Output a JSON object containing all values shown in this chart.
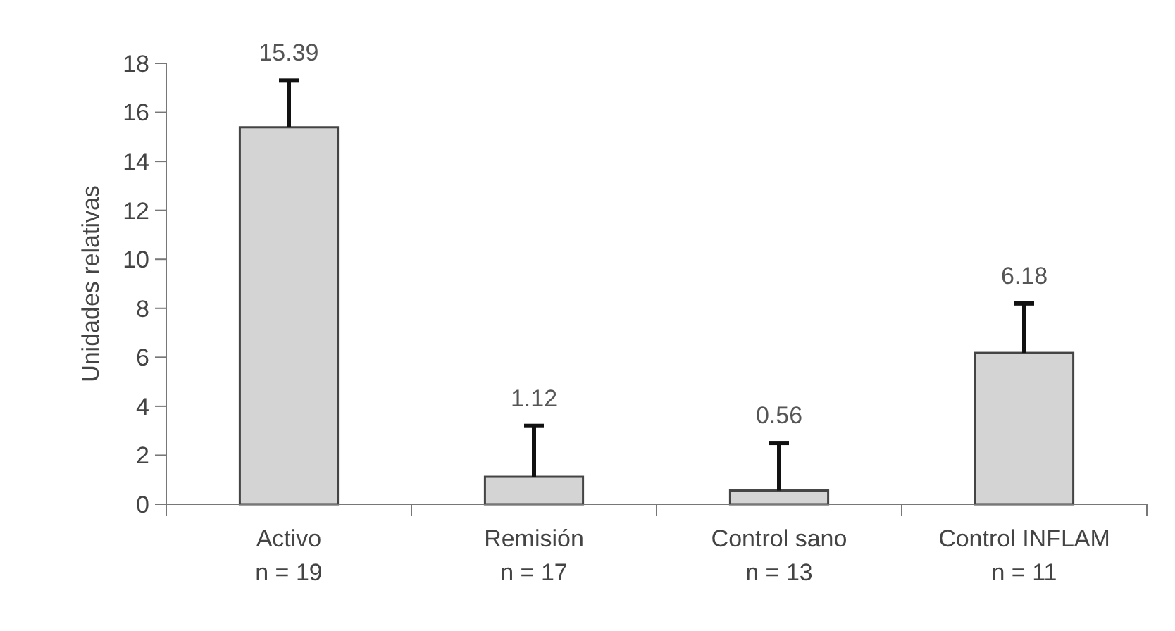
{
  "chart_data": {
    "type": "bar",
    "ylabel": "Unidades relativas",
    "categories": [
      "Activo\nn = 19",
      "Remisión\nn = 17",
      "Control sano\nn = 13",
      "Control INFLAM\nn = 11"
    ],
    "values": [
      15.39,
      1.12,
      0.56,
      6.18
    ],
    "errors": [
      [
        15.39,
        17.3
      ],
      [
        1.12,
        3.2
      ],
      [
        0.56,
        2.5
      ],
      [
        6.18,
        8.2
      ]
    ],
    "color": "#d4d4d4",
    "data_labels": true,
    "ylim": [
      0,
      18
    ],
    "yticks": [
      0,
      2,
      4,
      6,
      8,
      10,
      12,
      14,
      16,
      18
    ],
    "grid": false
  }
}
